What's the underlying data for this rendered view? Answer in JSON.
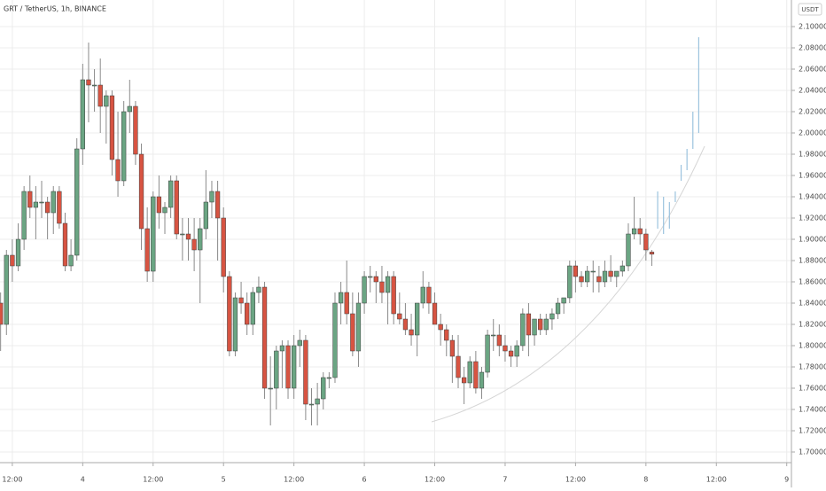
{
  "chart_data": {
    "type": "candlestick",
    "title": "GRT / TetherUS, 1h, BINANCE",
    "currency": "USDT",
    "up_color": "#6ba583",
    "down_color": "#d75442",
    "wick_color": "#8a8a8a",
    "projection_color": "#9cc3de",
    "grid": true,
    "xlim": [
      -2.1,
      132.8
    ],
    "ylim": [
      1.69,
      2.125
    ],
    "xticks": [
      {
        "value": 0,
        "label": "12:00"
      },
      {
        "value": 12,
        "label": "4"
      },
      {
        "value": 24,
        "label": "12:00"
      },
      {
        "value": 36,
        "label": "5"
      },
      {
        "value": 48,
        "label": "12:00"
      },
      {
        "value": 60,
        "label": "6"
      },
      {
        "value": 72,
        "label": "12:00"
      },
      {
        "value": 84,
        "label": "7"
      },
      {
        "value": 96,
        "label": "12:00"
      },
      {
        "value": 108,
        "label": "8"
      },
      {
        "value": 120,
        "label": "12:00"
      },
      {
        "value": 132,
        "label": "9"
      }
    ],
    "yticks": [
      {
        "value": 1.7,
        "label": "1.70000"
      },
      {
        "value": 1.72,
        "label": "1.72000"
      },
      {
        "value": 1.74,
        "label": "1.74000"
      },
      {
        "value": 1.76,
        "label": "1.76000"
      },
      {
        "value": 1.78,
        "label": "1.78000"
      },
      {
        "value": 1.8,
        "label": "1.80000"
      },
      {
        "value": 1.82,
        "label": "1.82000"
      },
      {
        "value": 1.84,
        "label": "1.84000"
      },
      {
        "value": 1.86,
        "label": "1.86000"
      },
      {
        "value": 1.88,
        "label": "1.88000"
      },
      {
        "value": 1.9,
        "label": "1.90000"
      },
      {
        "value": 1.92,
        "label": "1.92000"
      },
      {
        "value": 1.94,
        "label": "1.94000"
      },
      {
        "value": 1.96,
        "label": "1.96000"
      },
      {
        "value": 1.98,
        "label": "1.98000"
      },
      {
        "value": 2.0,
        "label": "2.00000"
      },
      {
        "value": 2.02,
        "label": "2.02000"
      },
      {
        "value": 2.04,
        "label": "2.04000"
      },
      {
        "value": 2.06,
        "label": "2.06000"
      },
      {
        "value": 2.08,
        "label": "2.08000"
      },
      {
        "value": 2.1,
        "label": "2.10000"
      }
    ],
    "x": [
      -2,
      -1,
      0,
      1,
      2,
      3,
      4,
      5,
      6,
      7,
      8,
      9,
      10,
      11,
      12,
      13,
      14,
      15,
      16,
      17,
      18,
      19,
      20,
      21,
      22,
      23,
      24,
      25,
      26,
      27,
      28,
      29,
      30,
      31,
      32,
      33,
      34,
      35,
      36,
      37,
      38,
      39,
      40,
      41,
      42,
      43,
      44,
      45,
      46,
      47,
      48,
      49,
      50,
      51,
      52,
      53,
      54,
      55,
      56,
      57,
      58,
      59,
      60,
      61,
      62,
      63,
      64,
      65,
      66,
      67,
      68,
      69,
      70,
      71,
      72,
      73,
      74,
      75,
      76,
      77,
      78,
      79,
      80,
      81,
      82,
      83,
      84,
      85,
      86,
      87,
      88,
      89,
      90,
      91,
      92,
      93,
      94,
      95,
      96,
      97,
      98,
      99,
      100,
      101,
      102,
      103,
      104,
      105,
      106,
      107,
      108,
      109
    ],
    "ohlc": [
      [
        1.84,
        1.85,
        1.795,
        1.82
      ],
      [
        1.82,
        1.89,
        1.81,
        1.885
      ],
      [
        1.885,
        1.9,
        1.86,
        1.875
      ],
      [
        1.875,
        1.915,
        1.87,
        1.9
      ],
      [
        1.9,
        1.95,
        1.89,
        1.945
      ],
      [
        1.945,
        1.96,
        1.92,
        1.93
      ],
      [
        1.93,
        1.95,
        1.9,
        1.935
      ],
      [
        1.935,
        1.955,
        1.92,
        1.935
      ],
      [
        1.935,
        1.94,
        1.9,
        1.925
      ],
      [
        1.925,
        1.95,
        1.905,
        1.945
      ],
      [
        1.945,
        1.95,
        1.91,
        1.915
      ],
      [
        1.915,
        1.925,
        1.87,
        1.875
      ],
      [
        1.875,
        1.9,
        1.87,
        1.885
      ],
      [
        1.885,
        1.995,
        1.88,
        1.985
      ],
      [
        1.985,
        2.065,
        1.97,
        2.05
      ],
      [
        2.05,
        2.085,
        2.01,
        2.045
      ],
      [
        2.045,
        2.06,
        2.02,
        2.045
      ],
      [
        2.045,
        2.07,
        2.0,
        2.025
      ],
      [
        2.025,
        2.04,
        1.99,
        2.035
      ],
      [
        2.035,
        2.04,
        1.96,
        1.975
      ],
      [
        1.975,
        2.02,
        1.94,
        1.955
      ],
      [
        1.955,
        2.03,
        1.95,
        2.02
      ],
      [
        2.02,
        2.05,
        2.0,
        2.025
      ],
      [
        2.025,
        2.03,
        1.97,
        1.98
      ],
      [
        1.98,
        1.99,
        1.89,
        1.91
      ],
      [
        1.91,
        1.93,
        1.86,
        1.87
      ],
      [
        1.87,
        1.945,
        1.86,
        1.94
      ],
      [
        1.94,
        1.96,
        1.91,
        1.925
      ],
      [
        1.925,
        1.935,
        1.905,
        1.93
      ],
      [
        1.93,
        1.96,
        1.92,
        1.955
      ],
      [
        1.955,
        1.96,
        1.9,
        1.905
      ],
      [
        1.905,
        1.92,
        1.88,
        1.905
      ],
      [
        1.905,
        1.92,
        1.88,
        1.9
      ],
      [
        1.9,
        1.92,
        1.87,
        1.89
      ],
      [
        1.89,
        1.92,
        1.84,
        1.91
      ],
      [
        1.91,
        1.965,
        1.9,
        1.935
      ],
      [
        1.935,
        1.955,
        1.92,
        1.945
      ],
      [
        1.945,
        1.955,
        1.88,
        1.92
      ],
      [
        1.92,
        1.93,
        1.85,
        1.865
      ],
      [
        1.865,
        1.87,
        1.79,
        1.795
      ],
      [
        1.795,
        1.85,
        1.79,
        1.845
      ],
      [
        1.845,
        1.86,
        1.83,
        1.84
      ],
      [
        1.84,
        1.85,
        1.81,
        1.82
      ],
      [
        1.82,
        1.855,
        1.81,
        1.85
      ],
      [
        1.85,
        1.865,
        1.84,
        1.855
      ],
      [
        1.855,
        1.86,
        1.75,
        1.76
      ],
      [
        1.76,
        1.79,
        1.725,
        1.76
      ],
      [
        1.76,
        1.8,
        1.74,
        1.795
      ],
      [
        1.795,
        1.805,
        1.76,
        1.8
      ],
      [
        1.8,
        1.805,
        1.75,
        1.76
      ],
      [
        1.76,
        1.81,
        1.75,
        1.8
      ],
      [
        1.8,
        1.815,
        1.78,
        1.805
      ],
      [
        1.805,
        1.81,
        1.73,
        1.745
      ],
      [
        1.745,
        1.76,
        1.725,
        1.745
      ],
      [
        1.745,
        1.765,
        1.725,
        1.75
      ],
      [
        1.75,
        1.775,
        1.74,
        1.77
      ],
      [
        1.77,
        1.775,
        1.76,
        1.77
      ],
      [
        1.77,
        1.85,
        1.765,
        1.84
      ],
      [
        1.84,
        1.86,
        1.82,
        1.85
      ],
      [
        1.85,
        1.88,
        1.82,
        1.83
      ],
      [
        1.83,
        1.85,
        1.79,
        1.795
      ],
      [
        1.795,
        1.85,
        1.78,
        1.84
      ],
      [
        1.84,
        1.87,
        1.83,
        1.865
      ],
      [
        1.865,
        1.875,
        1.85,
        1.865
      ],
      [
        1.865,
        1.87,
        1.84,
        1.86
      ],
      [
        1.86,
        1.875,
        1.84,
        1.85
      ],
      [
        1.85,
        1.87,
        1.82,
        1.865
      ],
      [
        1.865,
        1.87,
        1.82,
        1.83
      ],
      [
        1.83,
        1.85,
        1.82,
        1.825
      ],
      [
        1.825,
        1.84,
        1.81,
        1.815
      ],
      [
        1.815,
        1.83,
        1.8,
        1.81
      ],
      [
        1.81,
        1.84,
        1.79,
        1.84
      ],
      [
        1.84,
        1.87,
        1.835,
        1.855
      ],
      [
        1.855,
        1.86,
        1.83,
        1.84
      ],
      [
        1.84,
        1.85,
        1.82,
        1.82
      ],
      [
        1.82,
        1.83,
        1.8,
        1.815
      ],
      [
        1.815,
        1.82,
        1.79,
        1.805
      ],
      [
        1.805,
        1.81,
        1.765,
        1.79
      ],
      [
        1.79,
        1.81,
        1.76,
        1.77
      ],
      [
        1.77,
        1.78,
        1.745,
        1.765
      ],
      [
        1.765,
        1.79,
        1.76,
        1.785
      ],
      [
        1.785,
        1.795,
        1.755,
        1.76
      ],
      [
        1.76,
        1.78,
        1.75,
        1.775
      ],
      [
        1.775,
        1.815,
        1.77,
        1.81
      ],
      [
        1.81,
        1.825,
        1.795,
        1.81
      ],
      [
        1.81,
        1.82,
        1.79,
        1.8
      ],
      [
        1.8,
        1.81,
        1.785,
        1.795
      ],
      [
        1.795,
        1.8,
        1.78,
        1.79
      ],
      [
        1.79,
        1.805,
        1.78,
        1.8
      ],
      [
        1.8,
        1.835,
        1.795,
        1.83
      ],
      [
        1.83,
        1.84,
        1.79,
        1.81
      ],
      [
        1.81,
        1.825,
        1.8,
        1.825
      ],
      [
        1.825,
        1.83,
        1.81,
        1.815
      ],
      [
        1.815,
        1.83,
        1.81,
        1.825
      ],
      [
        1.825,
        1.835,
        1.815,
        1.83
      ],
      [
        1.83,
        1.845,
        1.825,
        1.84
      ],
      [
        1.84,
        1.845,
        1.83,
        1.845
      ],
      [
        1.845,
        1.88,
        1.84,
        1.875
      ],
      [
        1.875,
        1.88,
        1.85,
        1.865
      ],
      [
        1.865,
        1.87,
        1.855,
        1.86
      ],
      [
        1.86,
        1.875,
        1.855,
        1.87
      ],
      [
        1.87,
        1.88,
        1.85,
        1.87
      ],
      [
        1.865,
        1.875,
        1.85,
        1.86
      ],
      [
        1.86,
        1.88,
        1.855,
        1.87
      ],
      [
        1.87,
        1.885,
        1.86,
        1.865
      ],
      [
        1.865,
        1.87,
        1.855,
        1.87
      ],
      [
        1.87,
        1.88,
        1.865,
        1.875
      ],
      [
        1.875,
        1.915,
        1.87,
        1.905
      ],
      [
        1.905,
        1.94,
        1.9,
        1.91
      ],
      [
        1.91,
        1.92,
        1.895,
        1.905
      ],
      [
        1.905,
        1.91,
        1.88,
        1.89
      ],
      [
        1.888,
        1.89,
        1.875,
        1.886
      ]
    ],
    "projection_x": [
      110,
      111,
      112,
      113,
      114,
      115,
      116,
      117
    ],
    "projection": [
      [
        1.91,
        1.945
      ],
      [
        1.905,
        1.94
      ],
      [
        1.91,
        1.935
      ],
      [
        1.935,
        1.945
      ],
      [
        1.955,
        1.97
      ],
      [
        1.965,
        1.985
      ],
      [
        1.985,
        2.02
      ],
      [
        2.0,
        2.09
      ]
    ]
  }
}
